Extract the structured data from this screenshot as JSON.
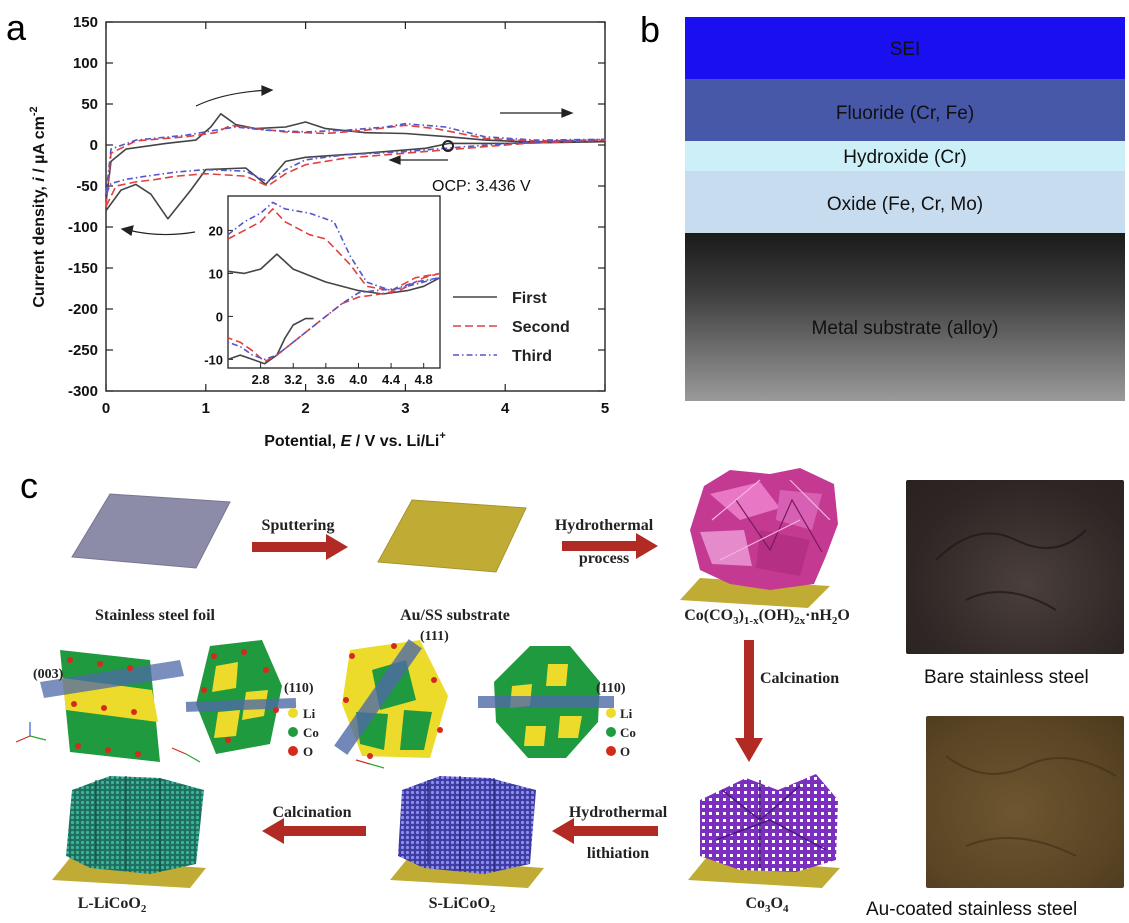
{
  "panel_a": {
    "letter": "a",
    "xlabel_pre": "Potential, ",
    "xlabel_var": "E",
    "xlabel_post": " / V vs. Li/Li",
    "xlabel_sup": "+",
    "ylabel_pre": "Current density, ",
    "ylabel_var": "i",
    "ylabel_post": " / µA cm",
    "ylabel_sup": "-2",
    "ocp_label": "OCP: 3.436 V"
  },
  "panel_b": {
    "letter": "b",
    "layers": [
      {
        "label": "SEI",
        "color": "#1a0ff0"
      },
      {
        "label": "Fluoride (Cr, Fe)",
        "color": "#4758a8"
      },
      {
        "label": "Hydroxide (Cr)",
        "color": "#cdeff7"
      },
      {
        "label": "Oxide (Fe, Cr, Mo)",
        "color": "#c8dcf0"
      },
      {
        "label": "Metal substrate (alloy)",
        "color": "#3a3a3a"
      }
    ]
  },
  "panel_c": {
    "letter": "c",
    "stainless": "Stainless steel foil",
    "sputtering": "Sputtering",
    "au_ss": "Au/SS substrate",
    "hydrothermal1": "Hydrothermal",
    "process": "process",
    "co_precursor": {
      "a": "Co(CO",
      "b": "3",
      "c": ")",
      "d": "1-x",
      "e": "(OH)",
      "f": "2x",
      "g": "·nH",
      "h": "2",
      "i": "O"
    },
    "calcination_v": "Calcination",
    "co3o4": {
      "a": "Co",
      "b": "3",
      "c": "O",
      "d": "4"
    },
    "hydrothermal2": "Hydrothermal",
    "lithiation": "lithiation",
    "s_licoo2": {
      "a": "S-LiCoO",
      "b": "2"
    },
    "calcination_h": "Calcination",
    "l_licoo2": {
      "a": "L-LiCoO",
      "b": "2"
    },
    "plane_003": "(003)",
    "plane_110": "(110)",
    "plane_111": "(111)",
    "legend_li": "Li",
    "legend_co": "Co",
    "legend_o": "O",
    "photo_bare": "Bare stainless steel",
    "photo_au": "Au-coated stainless steel",
    "colors": {
      "li": "#ecdb2a",
      "co": "#1f9a3e",
      "o": "#d42a1c",
      "arrow": "#b22a24",
      "gold": "#c9b43a"
    }
  },
  "chart_data": {
    "type": "line",
    "x_label": "Potential, E / V vs. Li/Li+",
    "y_label": "Current density, i / µA cm-2",
    "xlim": [
      0,
      5
    ],
    "ylim": [
      -300,
      150
    ],
    "x_ticks": [
      0,
      1,
      2,
      3,
      4,
      5
    ],
    "y_ticks": [
      150,
      100,
      50,
      0,
      -50,
      -100,
      -150,
      -200,
      -250,
      -300
    ],
    "annotations": [
      "OCP: 3.436 V"
    ],
    "series": [
      {
        "name": "First",
        "style": "solid",
        "color": "#444444",
        "anodic": [
          [
            0,
            -70
          ],
          [
            0.05,
            -20
          ],
          [
            0.2,
            -5
          ],
          [
            0.6,
            2
          ],
          [
            0.9,
            6
          ],
          [
            1.05,
            22
          ],
          [
            1.15,
            38
          ],
          [
            1.3,
            25
          ],
          [
            1.5,
            20
          ],
          [
            1.8,
            22
          ],
          [
            2.0,
            28
          ],
          [
            2.2,
            20
          ],
          [
            2.6,
            15
          ],
          [
            3.0,
            14
          ],
          [
            3.436,
            10
          ],
          [
            3.8,
            6
          ],
          [
            4.2,
            4
          ],
          [
            5,
            4
          ]
        ],
        "cathodic": [
          [
            5,
            4
          ],
          [
            4,
            2
          ],
          [
            3.436,
            2
          ],
          [
            3.2,
            -4
          ],
          [
            2.6,
            -10
          ],
          [
            2.0,
            -15
          ],
          [
            1.8,
            -20
          ],
          [
            1.6,
            -48
          ],
          [
            1.4,
            -28
          ],
          [
            1.0,
            -30
          ],
          [
            0.85,
            -55
          ],
          [
            0.62,
            -90
          ],
          [
            0.45,
            -60
          ],
          [
            0.3,
            -48
          ],
          [
            0.15,
            -55
          ],
          [
            0,
            -80
          ]
        ]
      },
      {
        "name": "Second",
        "style": "dashed",
        "color": "#e04040",
        "anodic": [
          [
            0,
            -75
          ],
          [
            0.05,
            -10
          ],
          [
            0.3,
            5
          ],
          [
            0.8,
            10
          ],
          [
            1.1,
            15
          ],
          [
            1.25,
            24
          ],
          [
            1.5,
            20
          ],
          [
            1.8,
            16
          ],
          [
            2.2,
            14
          ],
          [
            2.6,
            18
          ],
          [
            3.0,
            24
          ],
          [
            3.3,
            20
          ],
          [
            3.8,
            8
          ],
          [
            4.3,
            5
          ],
          [
            5,
            6
          ]
        ],
        "cathodic": [
          [
            5,
            6
          ],
          [
            4.2,
            2
          ],
          [
            3.6,
            -4
          ],
          [
            3.0,
            -10
          ],
          [
            2.4,
            -16
          ],
          [
            2.0,
            -24
          ],
          [
            1.8,
            -35
          ],
          [
            1.62,
            -50
          ],
          [
            1.4,
            -38
          ],
          [
            1.0,
            -35
          ],
          [
            0.7,
            -38
          ],
          [
            0.5,
            -42
          ],
          [
            0.3,
            -45
          ],
          [
            0.1,
            -50
          ],
          [
            0,
            -75
          ]
        ]
      },
      {
        "name": "Third",
        "style": "dash-dot",
        "color": "#5555cc",
        "anodic": [
          [
            0,
            -60
          ],
          [
            0.05,
            -5
          ],
          [
            0.3,
            6
          ],
          [
            0.8,
            12
          ],
          [
            1.1,
            18
          ],
          [
            1.3,
            22
          ],
          [
            1.6,
            18
          ],
          [
            2.0,
            16
          ],
          [
            2.4,
            18
          ],
          [
            2.8,
            22
          ],
          [
            3.0,
            26
          ],
          [
            3.4,
            22
          ],
          [
            3.8,
            10
          ],
          [
            4.3,
            6
          ],
          [
            5,
            7
          ]
        ],
        "cathodic": [
          [
            5,
            7
          ],
          [
            4.2,
            3
          ],
          [
            3.6,
            -2
          ],
          [
            3.0,
            -8
          ],
          [
            2.4,
            -12
          ],
          [
            2.0,
            -18
          ],
          [
            1.8,
            -30
          ],
          [
            1.62,
            -45
          ],
          [
            1.4,
            -32
          ],
          [
            1.0,
            -30
          ],
          [
            0.7,
            -33
          ],
          [
            0.4,
            -38
          ],
          [
            0.2,
            -42
          ],
          [
            0.05,
            -47
          ],
          [
            0,
            -60
          ]
        ]
      }
    ],
    "inset": {
      "xlim": [
        2.4,
        5.0
      ],
      "ylim": [
        -12,
        28
      ],
      "x_ticks": [
        2.8,
        3.2,
        3.6,
        4.0,
        4.4,
        4.8
      ],
      "y_ticks": [
        20,
        10,
        0,
        -10
      ],
      "series": [
        {
          "name": "First",
          "style": "solid",
          "color": "#444444",
          "curves": [
            [
              [
                2.4,
                10.5
              ],
              [
                2.6,
                10
              ],
              [
                2.8,
                11
              ],
              [
                3.0,
                14.5
              ],
              [
                3.2,
                11
              ],
              [
                3.6,
                8
              ],
              [
                4.0,
                6
              ],
              [
                4.3,
                5.2
              ],
              [
                4.6,
                6
              ],
              [
                4.8,
                7
              ],
              [
                5.0,
                9
              ]
            ],
            [
              [
                2.4,
                -10
              ],
              [
                2.55,
                -9
              ],
              [
                2.7,
                -10
              ],
              [
                2.85,
                -11
              ],
              [
                3.0,
                -9
              ],
              [
                3.1,
                -5
              ],
              [
                3.2,
                -2
              ],
              [
                3.35,
                -0.5
              ],
              [
                3.45,
                -0.5
              ]
            ]
          ]
        },
        {
          "name": "Second",
          "style": "dashed",
          "color": "#e04040",
          "curves": [
            [
              [
                2.4,
                18
              ],
              [
                2.6,
                20
              ],
              [
                2.8,
                22
              ],
              [
                2.95,
                25
              ],
              [
                3.1,
                22
              ],
              [
                3.4,
                19
              ],
              [
                3.6,
                18
              ],
              [
                3.9,
                12
              ],
              [
                4.1,
                7
              ],
              [
                4.4,
                6
              ],
              [
                4.7,
                9
              ],
              [
                5.0,
                10
              ]
            ],
            [
              [
                5.0,
                10
              ],
              [
                4.8,
                9
              ],
              [
                4.5,
                6
              ],
              [
                4.2,
                5
              ],
              [
                4.0,
                4.5
              ],
              [
                3.8,
                3
              ],
              [
                3.6,
                0
              ],
              [
                3.4,
                -3
              ],
              [
                3.2,
                -6
              ],
              [
                3.0,
                -9
              ],
              [
                2.85,
                -10.5
              ],
              [
                2.7,
                -8
              ],
              [
                2.55,
                -6
              ],
              [
                2.4,
                -5
              ]
            ]
          ]
        },
        {
          "name": "Third",
          "style": "dash-dot",
          "color": "#5555cc",
          "curves": [
            [
              [
                2.4,
                19
              ],
              [
                2.6,
                22
              ],
              [
                2.8,
                24
              ],
              [
                2.95,
                26.5
              ],
              [
                3.1,
                25
              ],
              [
                3.4,
                24
              ],
              [
                3.7,
                22
              ],
              [
                3.9,
                14
              ],
              [
                4.1,
                8
              ],
              [
                4.4,
                6
              ],
              [
                4.7,
                8
              ],
              [
                5.0,
                9
              ]
            ],
            [
              [
                5.0,
                9
              ],
              [
                4.8,
                8
              ],
              [
                4.5,
                6.5
              ],
              [
                4.2,
                6
              ],
              [
                4.0,
                5.5
              ],
              [
                3.8,
                3
              ],
              [
                3.6,
                0
              ],
              [
                3.4,
                -3
              ],
              [
                3.2,
                -6
              ],
              [
                3.0,
                -9
              ],
              [
                2.85,
                -10
              ],
              [
                2.7,
                -9
              ],
              [
                2.55,
                -7
              ],
              [
                2.4,
                -6
              ]
            ]
          ]
        }
      ]
    }
  }
}
